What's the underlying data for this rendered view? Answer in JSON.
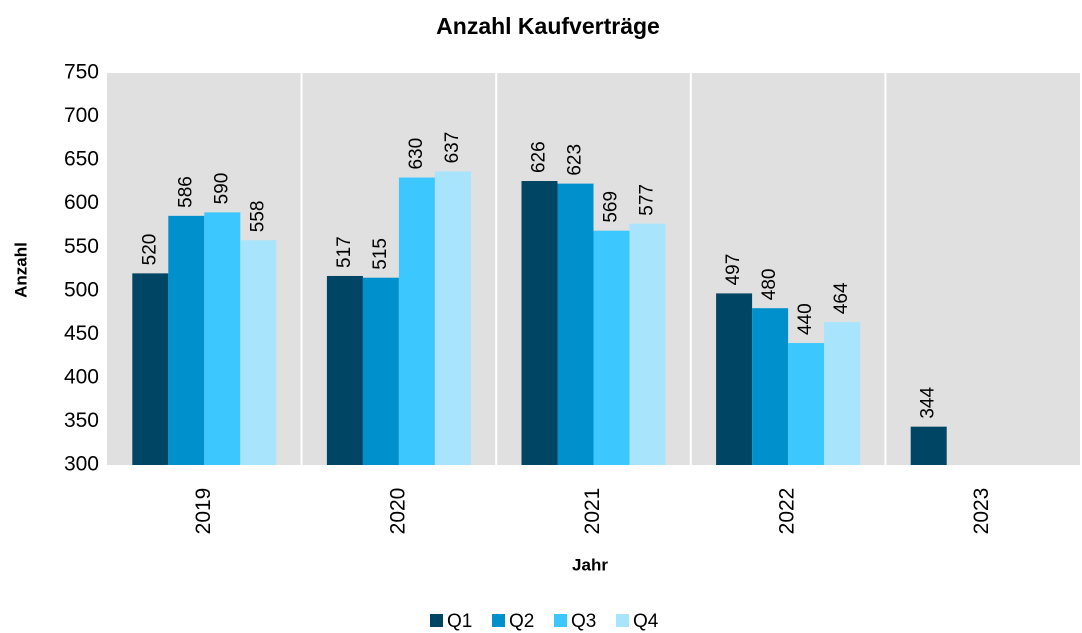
{
  "chart_data": {
    "type": "bar",
    "title": "Anzahl Kaufverträge",
    "x_label": "Jahr",
    "y_label": "Anzahl",
    "categories": [
      "2019",
      "2020",
      "2021",
      "2022",
      "2023"
    ],
    "series": [
      {
        "name": "Q1",
        "color": "#004563",
        "values": [
          520,
          517,
          626,
          497,
          344
        ]
      },
      {
        "name": "Q2",
        "color": "#0091cc",
        "values": [
          586,
          515,
          623,
          480,
          null
        ]
      },
      {
        "name": "Q3",
        "color": "#3cc8ff",
        "values": [
          590,
          630,
          569,
          440,
          null
        ]
      },
      {
        "name": "Q4",
        "color": "#a8e4fb",
        "values": [
          558,
          637,
          577,
          464,
          null
        ]
      }
    ],
    "ylim": [
      300,
      750
    ],
    "yticks": [
      300,
      350,
      400,
      450,
      500,
      550,
      600,
      650,
      700,
      750
    ],
    "grid": false,
    "legend": "bottom"
  }
}
